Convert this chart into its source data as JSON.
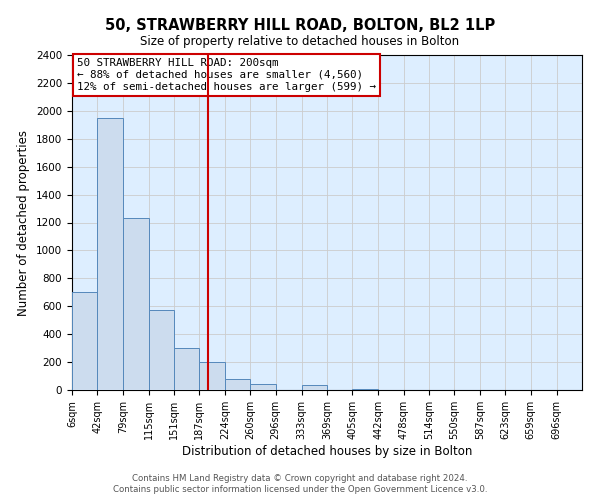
{
  "title": "50, STRAWBERRY HILL ROAD, BOLTON, BL2 1LP",
  "subtitle": "Size of property relative to detached houses in Bolton",
  "xlabel": "Distribution of detached houses by size in Bolton",
  "ylabel": "Number of detached properties",
  "bin_edges": [
    6,
    42,
    79,
    115,
    151,
    187,
    224,
    260,
    296,
    333,
    369,
    405,
    442,
    478,
    514,
    550,
    587,
    623,
    659,
    696,
    732
  ],
  "bin_heights": [
    700,
    1950,
    1230,
    575,
    300,
    200,
    80,
    45,
    0,
    35,
    0,
    10,
    0,
    0,
    0,
    0,
    0,
    0,
    0,
    0
  ],
  "bar_color": "#ccdcee",
  "bar_edge_color": "#5588bb",
  "vline_x": 200,
  "vline_color": "#cc0000",
  "ylim": [
    0,
    2400
  ],
  "yticks": [
    0,
    200,
    400,
    600,
    800,
    1000,
    1200,
    1400,
    1600,
    1800,
    2000,
    2200,
    2400
  ],
  "annotation_title": "50 STRAWBERRY HILL ROAD: 200sqm",
  "annotation_line1": "← 88% of detached houses are smaller (4,560)",
  "annotation_line2": "12% of semi-detached houses are larger (599) →",
  "annotation_box_color": "#ffffff",
  "annotation_box_edge": "#cc0000",
  "footer1": "Contains HM Land Registry data © Crown copyright and database right 2024.",
  "footer2": "Contains public sector information licensed under the Open Government Licence v3.0.",
  "grid_color": "#cccccc",
  "background_color": "#ddeeff"
}
